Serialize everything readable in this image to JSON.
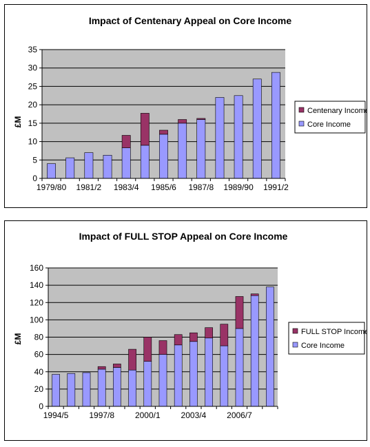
{
  "colors": {
    "plot_bg": "#C0C0C0",
    "core": "#9999FF",
    "appeal": "#993366",
    "gridline": "#000000",
    "bar_edge": "#000000"
  },
  "chart_data": [
    {
      "type": "bar",
      "stacked": true,
      "title": "Impact of Centenary Appeal on Core Income",
      "ylabel": "£M",
      "xlabel": "",
      "ylim": [
        0,
        35
      ],
      "ytick_step": 5,
      "yticks": [
        "0",
        "5",
        "10",
        "15",
        "20",
        "25",
        "30",
        "35"
      ],
      "grid": true,
      "legend_position": "right",
      "categories": [
        "1979/80",
        "1980/1",
        "1981/2",
        "1982/3",
        "1983/4",
        "1984/5",
        "1985/6",
        "1986/7",
        "1987/8",
        "1988/9",
        "1989/90",
        "1990/1",
        "1991/2"
      ],
      "xtick_labels": [
        "1979/80",
        "",
        "1981/2",
        "",
        "1983/4",
        "",
        "1985/6",
        "",
        "1987/8",
        "",
        "1989/90",
        "",
        "1991/2"
      ],
      "series": [
        {
          "name": "Core Income",
          "color_key": "core",
          "values": [
            4,
            5.6,
            7,
            6.3,
            8.3,
            9,
            12,
            15,
            16,
            22,
            22.5,
            27,
            28.8
          ]
        },
        {
          "name": "Centenary Income",
          "color_key": "appeal",
          "values": [
            0,
            0,
            0,
            0,
            3.4,
            8.7,
            1.1,
            1,
            0.3,
            0,
            0,
            0,
            0
          ]
        }
      ],
      "legend": [
        "Centenary Income",
        "Core Income"
      ]
    },
    {
      "type": "bar",
      "stacked": true,
      "title": "Impact of FULL STOP Appeal on Core Income",
      "ylabel": "£M",
      "xlabel": "",
      "ylim": [
        0,
        160
      ],
      "ytick_step": 20,
      "yticks": [
        "0",
        "20",
        "40",
        "60",
        "80",
        "100",
        "120",
        "140",
        "160"
      ],
      "grid": true,
      "legend_position": "right",
      "categories": [
        "1994/5",
        "1995/6",
        "1996/7",
        "1997/8",
        "1998/9",
        "1999/0",
        "2000/1",
        "2001/2",
        "2002/3",
        "2003/4",
        "2004/5",
        "2005/6",
        "2006/7",
        "2007/8",
        "2008/9"
      ],
      "xtick_labels": [
        "1994/5",
        "",
        "",
        "1997/8",
        "",
        "",
        "2000/1",
        "",
        "",
        "2003/4",
        "",
        "",
        "2006/7",
        "",
        ""
      ],
      "series": [
        {
          "name": "Core Income",
          "color_key": "core",
          "values": [
            37,
            38,
            39,
            43,
            45,
            42,
            52,
            60,
            71,
            75,
            79,
            70,
            90,
            128,
            138
          ]
        },
        {
          "name": "FULL STOP Income",
          "color_key": "appeal",
          "values": [
            0,
            0,
            0,
            3,
            4,
            24,
            28,
            16,
            12,
            10,
            12,
            25,
            37,
            2,
            0
          ]
        }
      ],
      "legend": [
        "FULL STOP Income",
        "Core Income"
      ]
    }
  ]
}
